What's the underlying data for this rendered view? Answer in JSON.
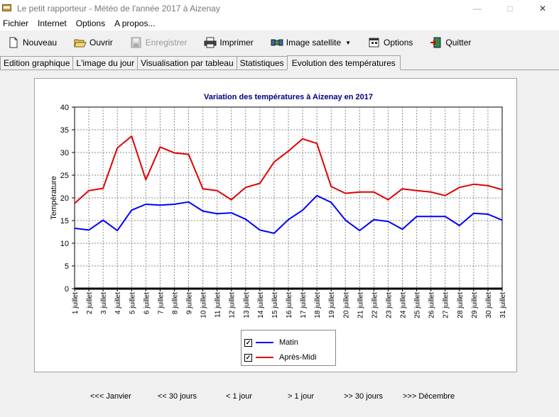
{
  "window": {
    "title": "Le petit rapporteur - Météo de l'année 2017 à Aizenay"
  },
  "menu": [
    "Fichier",
    "Internet",
    "Options",
    "A propos..."
  ],
  "toolbar": {
    "nouveau": "Nouveau",
    "ouvrir": "Ouvrir",
    "enregistrer": "Enregistrer",
    "imprimer": "Imprimer",
    "image_satellite": "Image satellite",
    "options": "Options",
    "quitter": "Quitter"
  },
  "tabs": [
    "Edition graphique",
    "L'image du jour",
    "Visualisation par tableau",
    "Statistiques",
    "Evolution des températures"
  ],
  "colors": {
    "matin": "#0000ff",
    "apres_midi": "#e00000",
    "title": "#000080"
  },
  "chart_data": {
    "type": "line",
    "title": "Variation des températures à Aizenay en 2017",
    "ylabel": "Température",
    "xlabel": "",
    "ylim": [
      0,
      40
    ],
    "yticks": [
      0,
      5,
      10,
      15,
      20,
      25,
      30,
      35,
      40
    ],
    "grid": true,
    "legend": "bottom-center",
    "categories": [
      "1 juillet",
      "2 juillet",
      "3 juillet",
      "4 juillet",
      "5 juillet",
      "6 juillet",
      "7 juillet",
      "8 juillet",
      "9 juillet",
      "10 juillet",
      "11 juillet",
      "12 juillet",
      "13 juillet",
      "14 juillet",
      "15 juillet",
      "16 juillet",
      "17 juillet",
      "18 juillet",
      "19 juillet",
      "20 juillet",
      "21 juillet",
      "22 juillet",
      "23 juillet",
      "24 juillet",
      "25 juillet",
      "26 juillet",
      "27 juillet",
      "28 juillet",
      "29 juillet",
      "30 juillet",
      "31 juillet"
    ],
    "series": [
      {
        "name": "Matin",
        "color": "#0000ff",
        "values": [
          13.3,
          12.9,
          15.1,
          12.8,
          17.3,
          18.6,
          18.4,
          18.6,
          19.1,
          17.1,
          16.5,
          16.7,
          15.3,
          12.9,
          12.2,
          15.2,
          17.3,
          20.5,
          19.0,
          15.1,
          12.8,
          15.2,
          14.8,
          13.1,
          15.9,
          15.9,
          15.9,
          13.9,
          16.6,
          16.4,
          15.1
        ]
      },
      {
        "name": "Après-Midi",
        "color": "#e00000",
        "values": [
          18.8,
          21.6,
          22.1,
          31.0,
          33.6,
          24.0,
          31.2,
          29.9,
          29.6,
          22.0,
          21.6,
          19.6,
          22.3,
          23.2,
          27.9,
          30.3,
          33.0,
          32.0,
          22.5,
          21.0,
          21.3,
          21.3,
          19.6,
          22.0,
          21.6,
          21.3,
          20.5,
          22.3,
          23.0,
          22.7,
          21.8
        ]
      }
    ]
  },
  "nav": [
    "<<< Janvier",
    "<< 30 jours",
    "< 1 jour",
    "> 1 jour",
    ">> 30 jours",
    ">>> Décembre"
  ]
}
